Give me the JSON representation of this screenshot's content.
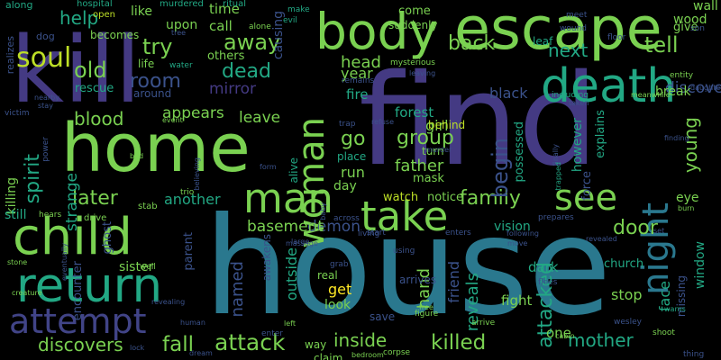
{
  "background": "#000000",
  "words": [
    {
      "text": "house",
      "color": "#2a788e"
    },
    {
      "text": "find",
      "color": "#443a83"
    },
    {
      "text": "kill",
      "color": "#443a83"
    },
    {
      "text": "home",
      "color": "#7ad151"
    },
    {
      "text": "escape",
      "color": "#7ad151"
    },
    {
      "text": "body",
      "color": "#7ad151"
    },
    {
      "text": "death",
      "color": "#22a884"
    },
    {
      "text": "child",
      "color": "#7ad151"
    },
    {
      "text": "return",
      "color": "#22a884"
    },
    {
      "text": "attempt",
      "color": "#414487"
    },
    {
      "text": "man",
      "color": "#7ad151"
    },
    {
      "text": "take",
      "color": "#7ad151"
    },
    {
      "text": "woman",
      "color": "#7ad151"
    },
    {
      "text": "see",
      "color": "#7ad151"
    },
    {
      "text": "night",
      "color": "#2a788e"
    },
    {
      "text": "soul",
      "color": "#bddf26"
    },
    {
      "text": "help",
      "color": "#22a884"
    },
    {
      "text": "try",
      "color": "#7ad151"
    },
    {
      "text": "away",
      "color": "#7ad151"
    },
    {
      "text": "back",
      "color": "#7ad151"
    },
    {
      "text": "tell",
      "color": "#7ad151"
    },
    {
      "text": "next",
      "color": "#22a884"
    },
    {
      "text": "old",
      "color": "#7ad151"
    },
    {
      "text": "room",
      "color": "#3b528b"
    },
    {
      "text": "dead",
      "color": "#22a884"
    },
    {
      "text": "mirror",
      "color": "#443a83"
    },
    {
      "text": "head",
      "color": "#7ad151"
    },
    {
      "text": "blood",
      "color": "#7ad151"
    },
    {
      "text": "appears",
      "color": "#7ad151"
    },
    {
      "text": "leave",
      "color": "#7ad151"
    },
    {
      "text": "go",
      "color": "#7ad151"
    },
    {
      "text": "group",
      "color": "#7ad151"
    },
    {
      "text": "father",
      "color": "#7ad151"
    },
    {
      "text": "family",
      "color": "#7ad151"
    },
    {
      "text": "spirit",
      "color": "#22a884"
    },
    {
      "text": "later",
      "color": "#7ad151"
    },
    {
      "text": "strange",
      "color": "#22a884"
    },
    {
      "text": "demon",
      "color": "#3b528b"
    },
    {
      "text": "door",
      "color": "#7ad151"
    },
    {
      "text": "basement",
      "color": "#7ad151"
    },
    {
      "text": "attack",
      "color": "#7ad151"
    },
    {
      "text": "fall",
      "color": "#7ad151"
    },
    {
      "text": "inside",
      "color": "#7ad151"
    },
    {
      "text": "killed",
      "color": "#7ad151"
    },
    {
      "text": "mother",
      "color": "#22a884"
    },
    {
      "text": "discovers",
      "color": "#7ad151"
    },
    {
      "text": "begin",
      "color": "#3b528b"
    },
    {
      "text": "hand",
      "color": "#7ad151"
    },
    {
      "text": "reveals",
      "color": "#22a884"
    },
    {
      "text": "named",
      "color": "#3b528b"
    },
    {
      "text": "attacked",
      "color": "#22a884"
    },
    {
      "text": "forest",
      "color": "#22a884"
    },
    {
      "text": "fire",
      "color": "#22a884"
    },
    {
      "text": "year",
      "color": "#7ad151"
    },
    {
      "text": "girl",
      "color": "#7ad151"
    },
    {
      "text": "black",
      "color": "#3b528b"
    },
    {
      "text": "run",
      "color": "#7ad151"
    },
    {
      "text": "day",
      "color": "#7ad151"
    },
    {
      "text": "place",
      "color": "#22a884"
    },
    {
      "text": "watch",
      "color": "#bddf26"
    },
    {
      "text": "notice",
      "color": "#7ad151"
    },
    {
      "text": "vision",
      "color": "#22a884"
    },
    {
      "text": "friend",
      "color": "#3b528b"
    },
    {
      "text": "eye",
      "color": "#7ad151"
    },
    {
      "text": "killing",
      "color": "#7ad151"
    },
    {
      "text": "another",
      "color": "#22a884"
    },
    {
      "text": "still",
      "color": "#22a884"
    },
    {
      "text": "parent",
      "color": "#3b528b"
    },
    {
      "text": "sister",
      "color": "#7ad151"
    },
    {
      "text": "get",
      "color": "#fde725"
    },
    {
      "text": "look",
      "color": "#7ad151"
    },
    {
      "text": "real",
      "color": "#7ad151"
    },
    {
      "text": "outside",
      "color": "#22a884"
    },
    {
      "text": "awakens",
      "color": "#3b528b"
    },
    {
      "text": "fight",
      "color": "#7ad151"
    },
    {
      "text": "dark",
      "color": "#22a884"
    },
    {
      "text": "stop",
      "color": "#7ad151"
    },
    {
      "text": "face",
      "color": "#22a884"
    },
    {
      "text": "window",
      "color": "#22a884"
    },
    {
      "text": "young",
      "color": "#7ad151"
    },
    {
      "text": "discover",
      "color": "#3b528b"
    },
    {
      "text": "break",
      "color": "#7ad151"
    },
    {
      "text": "wall",
      "color": "#7ad151"
    },
    {
      "text": "wood",
      "color": "#7ad151"
    },
    {
      "text": "give",
      "color": "#7ad151"
    },
    {
      "text": "time",
      "color": "#7ad151"
    },
    {
      "text": "call",
      "color": "#7ad151"
    },
    {
      "text": "upon",
      "color": "#7ad151"
    },
    {
      "text": "like",
      "color": "#7ad151"
    },
    {
      "text": "come",
      "color": "#7ad151"
    },
    {
      "text": "others",
      "color": "#7ad151"
    },
    {
      "text": "life",
      "color": "#7ad151"
    },
    {
      "text": "becomes",
      "color": "#7ad151"
    },
    {
      "text": "rescue",
      "color": "#22a884"
    },
    {
      "text": "around",
      "color": "#3b528b"
    },
    {
      "text": "one",
      "color": "#7ad151"
    },
    {
      "text": "alive",
      "color": "#22a884"
    },
    {
      "text": "mask",
      "color": "#7ad151"
    },
    {
      "text": "turn",
      "color": "#7ad151"
    },
    {
      "text": "behind",
      "color": "#bddf26"
    },
    {
      "text": "causing",
      "color": "#3b528b"
    },
    {
      "text": "however",
      "color": "#22a884"
    },
    {
      "text": "explains",
      "color": "#22a884"
    },
    {
      "text": "possessed",
      "color": "#22a884"
    },
    {
      "text": "encounter",
      "color": "#3b528b"
    },
    {
      "text": "realizes",
      "color": "#3b528b"
    },
    {
      "text": "ghost",
      "color": "#3b528b"
    },
    {
      "text": "church",
      "color": "#22a884"
    },
    {
      "text": "arrives",
      "color": "#3b528b"
    },
    {
      "text": "save",
      "color": "#3b528b"
    },
    {
      "text": "way",
      "color": "#7ad151"
    },
    {
      "text": "claim",
      "color": "#7ad151"
    },
    {
      "text": "force",
      "color": "#3b528b"
    },
    {
      "text": "missing",
      "color": "#3b528b"
    },
    {
      "text": "leaf",
      "color": "#22a884"
    },
    {
      "text": "dog",
      "color": "#3b528b"
    },
    {
      "text": "along",
      "color": "#22a884"
    },
    {
      "text": "hospital",
      "color": "#22a884"
    },
    {
      "text": "open",
      "color": "#bddf26"
    },
    {
      "text": "murdered",
      "color": "#22a884"
    },
    {
      "text": "ritual",
      "color": "#22a884"
    },
    {
      "text": "make",
      "color": "#22a884"
    },
    {
      "text": "evil",
      "color": "#22a884"
    },
    {
      "text": "suddenly",
      "color": "#7ad151"
    },
    {
      "text": "alone",
      "color": "#7ad151"
    },
    {
      "text": "water",
      "color": "#22a884"
    },
    {
      "text": "remains",
      "color": "#3b528b"
    },
    {
      "text": "mysterious",
      "color": "#7ad151"
    },
    {
      "text": "leaving",
      "color": "#3b528b"
    },
    {
      "text": "meet",
      "color": "#3b528b"
    },
    {
      "text": "wound",
      "color": "#3b528b"
    },
    {
      "text": "floor",
      "color": "#3b528b"
    },
    {
      "text": "son",
      "color": "#3b528b"
    },
    {
      "text": "entity",
      "color": "#7ad151"
    },
    {
      "text": "including",
      "color": "#22a884"
    },
    {
      "text": "taken",
      "color": "#3b528b"
    },
    {
      "text": "meanwhile",
      "color": "#7ad151"
    },
    {
      "text": "daughter",
      "color": "#3b528b"
    },
    {
      "text": "victim",
      "color": "#3b528b"
    },
    {
      "text": "event",
      "color": "#7ad151"
    },
    {
      "text": "trap",
      "color": "#3b528b"
    },
    {
      "text": "refuse",
      "color": "#3b528b"
    },
    {
      "text": "murder",
      "color": "#3b528b"
    },
    {
      "text": "bed",
      "color": "#7ad151"
    },
    {
      "text": "believing",
      "color": "#3b528b"
    },
    {
      "text": "form",
      "color": "#3b528b"
    },
    {
      "text": "finally",
      "color": "#3b528b"
    },
    {
      "text": "trapped",
      "color": "#22a884"
    },
    {
      "text": "stab",
      "color": "#7ad151"
    },
    {
      "text": "drive",
      "color": "#7ad151"
    },
    {
      "text": "hears",
      "color": "#7ad151"
    },
    {
      "text": "trio",
      "color": "#7ad151"
    },
    {
      "text": "baby",
      "color": "#3b528b"
    },
    {
      "text": "across",
      "color": "#3b528b"
    },
    {
      "text": "start",
      "color": "#3b528b"
    },
    {
      "text": "enters",
      "color": "#3b528b"
    },
    {
      "text": "prepares",
      "color": "#3b528b"
    },
    {
      "text": "following",
      "color": "#3b528b"
    },
    {
      "text": "move",
      "color": "#3b528b"
    },
    {
      "text": "revealed",
      "color": "#3b528b"
    },
    {
      "text": "set",
      "color": "#3b528b"
    },
    {
      "text": "burn",
      "color": "#7ad151"
    },
    {
      "text": "well",
      "color": "#7ad151"
    },
    {
      "text": "stone",
      "color": "#7ad151"
    },
    {
      "text": "creature",
      "color": "#7ad151"
    },
    {
      "text": "grab",
      "color": "#3b528b"
    },
    {
      "text": "using",
      "color": "#3b528b"
    },
    {
      "text": "living",
      "color": "#3b528b"
    },
    {
      "text": "flees",
      "color": "#3b528b"
    },
    {
      "text": "warns",
      "color": "#22a884"
    },
    {
      "text": "wesley",
      "color": "#3b528b"
    },
    {
      "text": "shoot",
      "color": "#7ad151"
    },
    {
      "text": "cabin",
      "color": "#7ad151"
    },
    {
      "text": "figure",
      "color": "#7ad151"
    },
    {
      "text": "corpse",
      "color": "#7ad151"
    },
    {
      "text": "bedroom",
      "color": "#7ad151"
    },
    {
      "text": "arrive",
      "color": "#7ad151"
    },
    {
      "text": "free",
      "color": "#7ad151"
    },
    {
      "text": "enter",
      "color": "#3b528b"
    },
    {
      "text": "left",
      "color": "#7ad151"
    },
    {
      "text": "lock",
      "color": "#3b528b"
    },
    {
      "text": "human",
      "color": "#3b528b"
    },
    {
      "text": "dream",
      "color": "#3b528b"
    },
    {
      "text": "revealing",
      "color": "#3b528b"
    },
    {
      "text": "power",
      "color": "#3b528b"
    },
    {
      "text": "eventually",
      "color": "#3b528b"
    },
    {
      "text": "nearby",
      "color": "#3b528b"
    },
    {
      "text": "stay",
      "color": "#3b528b"
    },
    {
      "text": "tree",
      "color": "#3b528b"
    },
    {
      "text": "large",
      "color": "#3b528b"
    },
    {
      "text": "thing",
      "color": "#3b528b"
    },
    {
      "text": "finding",
      "color": "#3b528b"
    },
    {
      "text": "massage",
      "color": "#3b528b"
    },
    {
      "text": "rabbit",
      "color": "#3b528b"
    }
  ]
}
